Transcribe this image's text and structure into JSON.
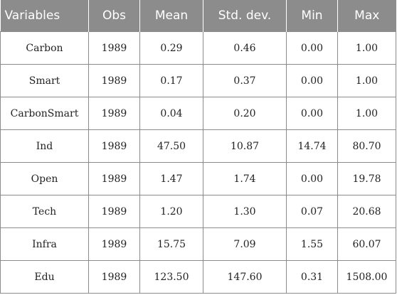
{
  "table": {
    "headers": [
      "Variables",
      "Obs",
      "Mean",
      "Std. dev.",
      "Min",
      "Max"
    ],
    "rows": [
      [
        "Carbon",
        "1989",
        "0.29",
        "0.46",
        "0.00",
        "1.00"
      ],
      [
        "Smart",
        "1989",
        "0.17",
        "0.37",
        "0.00",
        "1.00"
      ],
      [
        "CarbonSmart",
        "1989",
        "0.04",
        "0.20",
        "0.00",
        "1.00"
      ],
      [
        "Ind",
        "1989",
        "47.50",
        "10.87",
        "14.74",
        "80.70"
      ],
      [
        "Open",
        "1989",
        "1.47",
        "1.74",
        "0.00",
        "19.78"
      ],
      [
        "Tech",
        "1989",
        "1.20",
        "1.30",
        "0.07",
        "20.68"
      ],
      [
        "Infra",
        "1989",
        "15.75",
        "7.09",
        "1.55",
        "60.07"
      ],
      [
        "Edu",
        "1989",
        "123.50",
        "147.60",
        "0.31",
        "1508.00"
      ]
    ]
  },
  "colors": {
    "header_bg": "#8c8c8c",
    "header_text": "#ffffff",
    "grid": "#8c8c8c"
  }
}
